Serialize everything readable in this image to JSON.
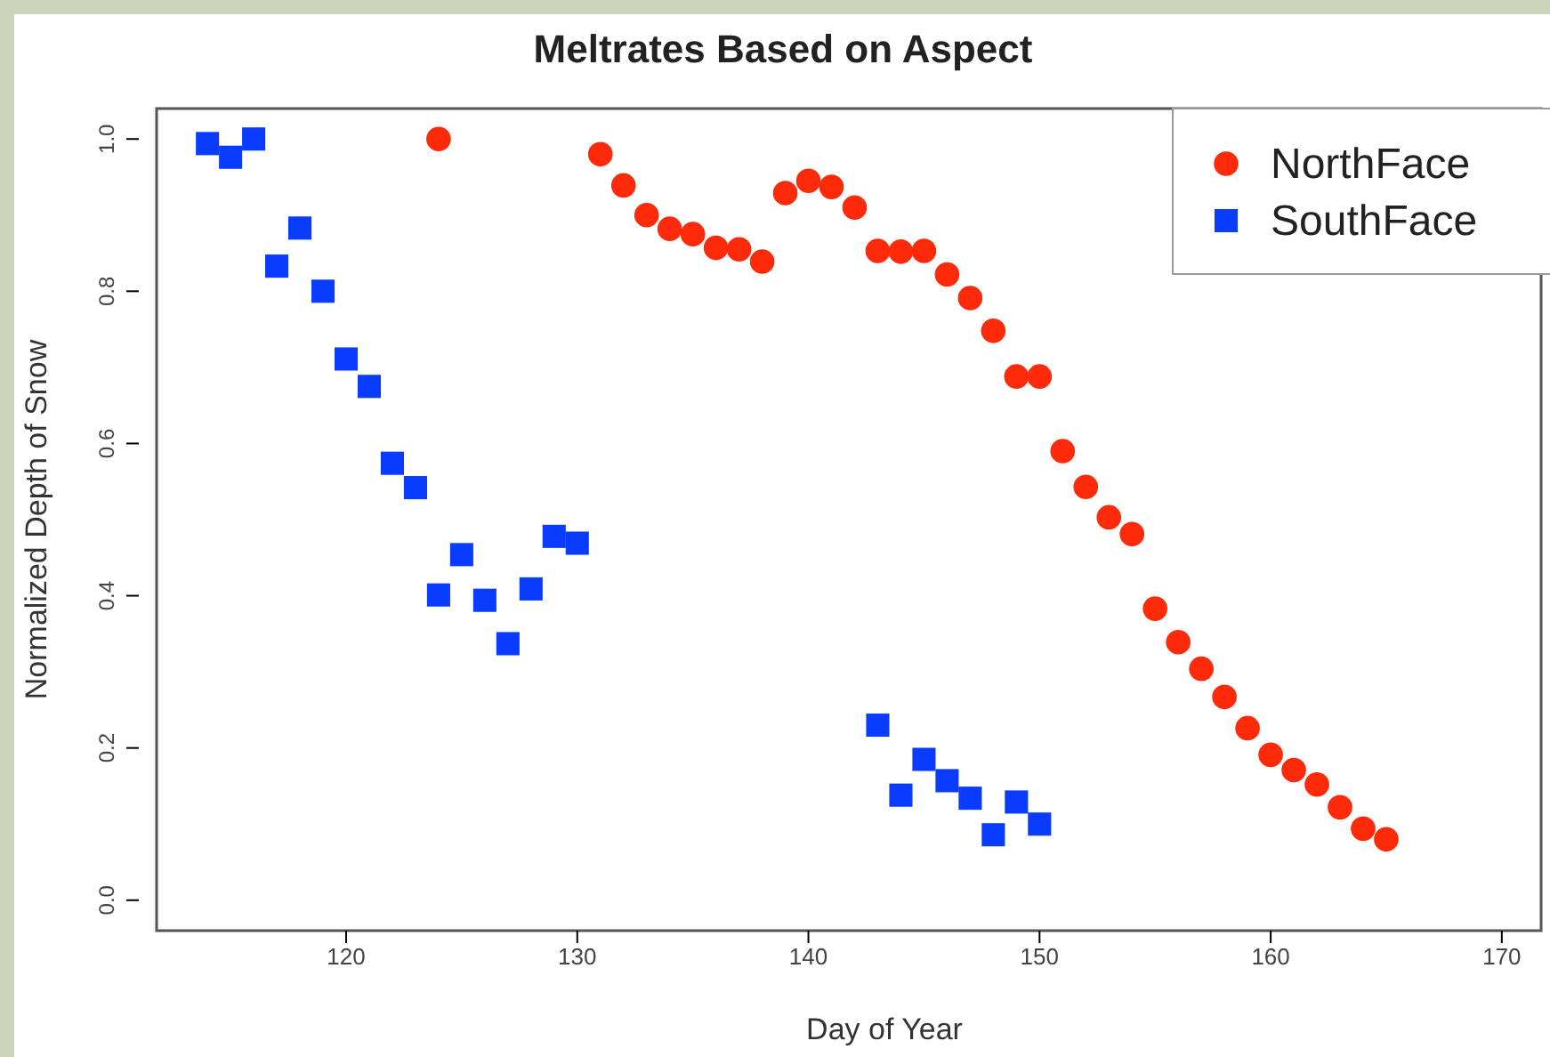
{
  "chart_data": {
    "type": "scatter",
    "title": "Meltrates Based on Aspect",
    "xlabel": "Day of Year",
    "ylabel": "Normalized Depth of Snow",
    "xlim": [
      111.8,
      171.7
    ],
    "xticks": [
      120,
      130,
      140,
      150,
      160,
      170
    ],
    "ylim": [
      -0.04,
      1.04
    ],
    "yticks": [
      {
        "value": 0,
        "label": "0.0"
      },
      0.2,
      0.4,
      0.6,
      0.8,
      {
        "value": 1,
        "label": "1.0"
      }
    ],
    "legend": "top right",
    "grid": false,
    "series": [
      {
        "name": "NorthFace",
        "color": "#ff2a0a",
        "marker": "circle",
        "x": [
          124,
          131,
          132,
          133,
          134,
          135,
          136,
          137,
          138,
          139,
          140,
          141,
          142,
          143,
          144,
          145,
          146,
          147,
          148,
          149,
          150,
          151,
          152,
          153,
          154,
          155,
          156,
          157,
          158,
          159,
          160,
          161,
          162,
          163,
          164,
          165
        ],
        "values": [
          1.0,
          0.98,
          0.939,
          0.9,
          0.882,
          0.875,
          0.857,
          0.855,
          0.839,
          0.929,
          0.945,
          0.937,
          0.91,
          0.853,
          0.852,
          0.853,
          0.822,
          0.791,
          0.748,
          0.688,
          0.688,
          0.59,
          0.543,
          0.503,
          0.481,
          0.383,
          0.339,
          0.304,
          0.267,
          0.226,
          0.191,
          0.171,
          0.152,
          0.122,
          0.094,
          0.08
        ]
      },
      {
        "name": "SouthFace",
        "color": "#0a3cff",
        "marker": "square",
        "x": [
          114,
          115,
          116,
          117,
          118,
          119,
          120,
          121,
          122,
          123,
          124,
          125,
          126,
          127,
          128,
          129,
          130,
          143,
          144,
          145,
          146,
          147,
          148,
          149,
          150
        ],
        "values": [
          0.994,
          0.976,
          1.0,
          0.833,
          0.883,
          0.8,
          0.711,
          0.675,
          0.574,
          0.542,
          0.401,
          0.454,
          0.394,
          0.337,
          0.409,
          0.478,
          0.469,
          0.23,
          0.138,
          0.185,
          0.157,
          0.134,
          0.086,
          0.129,
          0.1
        ]
      }
    ]
  }
}
